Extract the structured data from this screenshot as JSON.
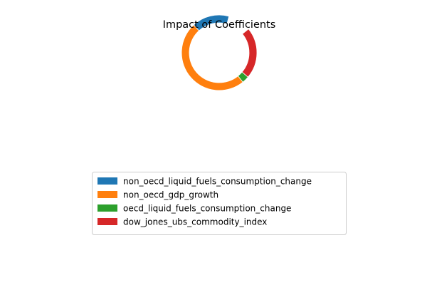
{
  "chart_data": {
    "type": "pie",
    "variant": "donut",
    "title": "Impact of Coefficients",
    "series": [
      {
        "name": "non_oecd_liquid_fuels_consumption_change",
        "value": 0.16,
        "color": "#1f77b4"
      },
      {
        "name": "non_oecd_gdp_growth",
        "value": 0.49,
        "color": "#ff7f0e"
      },
      {
        "name": "oecd_liquid_fuels_consumption_change",
        "value": 0.03,
        "color": "#2ca02c"
      },
      {
        "name": "dow_jones_ubs_commodity_index",
        "value": 0.22,
        "color": "#d62728"
      }
    ],
    "start_angle_deg": 75,
    "direction": "counterclockwise",
    "legend_position": "lower center"
  }
}
